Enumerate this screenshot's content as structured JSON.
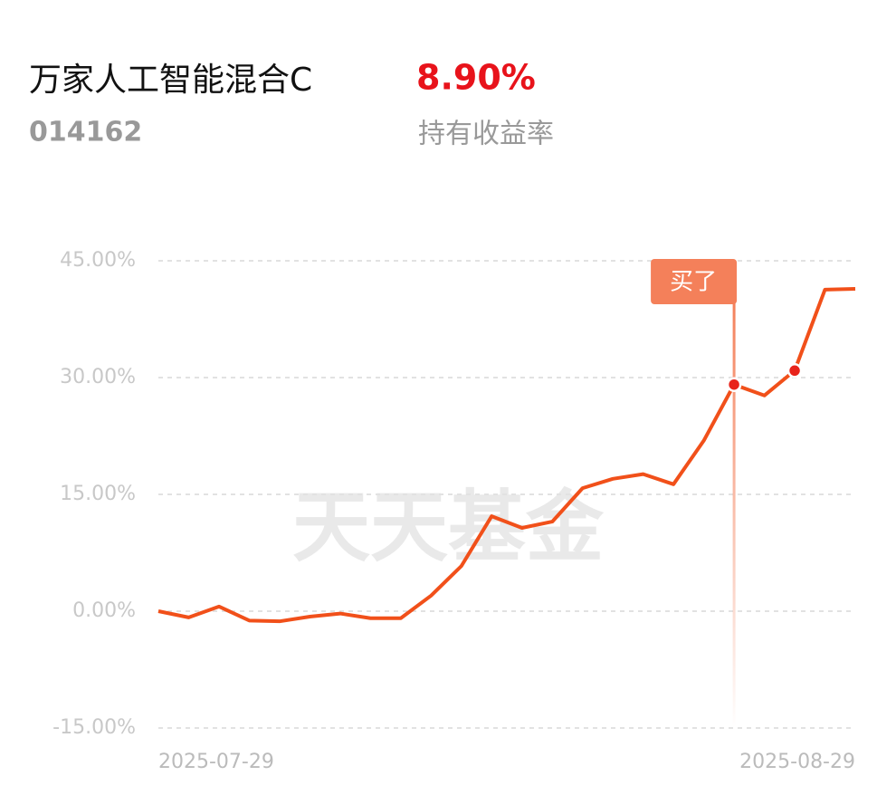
{
  "chart_data": {
    "type": "line",
    "title": "万家人工智能混合C",
    "holding_return": "8.90%",
    "code": "014162",
    "subtitle": "持有收益率",
    "watermark": "天天基金",
    "categories": [
      "2025-07-29",
      null,
      null,
      null,
      null,
      null,
      null,
      null,
      null,
      null,
      null,
      null,
      null,
      null,
      null,
      null,
      null,
      null,
      null,
      null,
      null,
      null,
      null,
      "2025-08-29"
    ],
    "series": [
      {
        "name": "持有收益率",
        "color": "#f1501a",
        "values": [
          0,
          -0.8,
          0.6,
          -1.2,
          -1.3,
          -0.7,
          -0.3,
          -0.9,
          -0.9,
          2.0,
          5.8,
          12.2,
          10.7,
          11.5,
          15.8,
          17.0,
          17.6,
          16.3,
          21.9,
          29.1,
          27.7,
          30.9,
          41.3,
          41.4
        ]
      }
    ],
    "highlight_points": [
      19,
      21
    ],
    "annotation": {
      "text": "买了",
      "index": 19
    },
    "ylim": [
      -15,
      45
    ],
    "yticks": [
      {
        "value": -15,
        "label": "-15.00%"
      },
      {
        "value": 0,
        "label": "0.00%"
      },
      {
        "value": 15,
        "label": "15.00%"
      },
      {
        "value": 30,
        "label": "30.00%"
      },
      {
        "value": 45,
        "label": "45.00%"
      }
    ],
    "grid": true
  }
}
